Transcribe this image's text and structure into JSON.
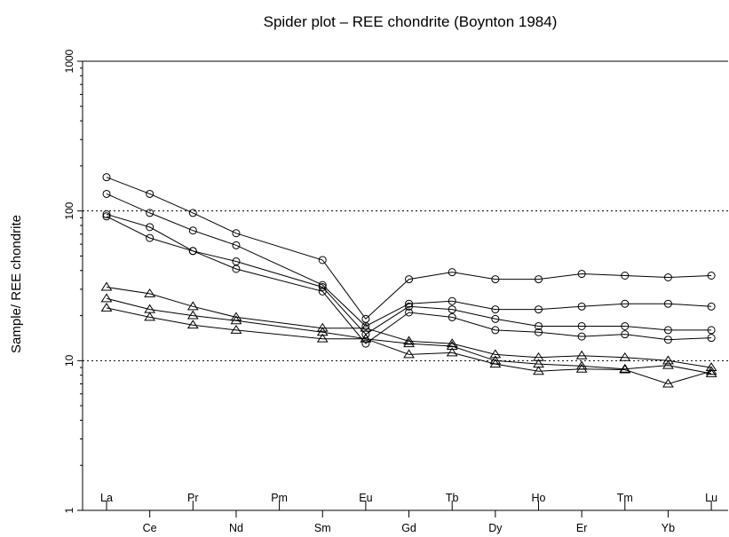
{
  "chart_data": {
    "type": "line",
    "title": "Spider plot –  REE chondrite (Boynton 1984)",
    "ylabel": "Sample/ REE chondrite",
    "xlabel": "",
    "y_scale": "log",
    "ylim": [
      1,
      1000
    ],
    "y_ticks": [
      {
        "value": 1,
        "label": "1"
      },
      {
        "value": 10,
        "label": "10"
      },
      {
        "value": 100,
        "label": "100"
      },
      {
        "value": 1000,
        "label": "1000"
      }
    ],
    "grid_lines": [
      10,
      100
    ],
    "categories": [
      "La",
      "Ce",
      "Pr",
      "Nd",
      "Pm",
      "Sm",
      "Eu",
      "Gd",
      "Tb",
      "Dy",
      "Ho",
      "Er",
      "Tm",
      "Yb",
      "Lu"
    ],
    "series": [
      {
        "marker": "circle",
        "values": [
          168,
          130,
          97,
          71,
          null,
          47,
          19,
          35,
          39,
          35,
          35,
          38,
          37,
          36,
          37
        ]
      },
      {
        "marker": "circle",
        "values": [
          130,
          97,
          74,
          59,
          null,
          32,
          17,
          24,
          25,
          22,
          22,
          23,
          24,
          24,
          23
        ]
      },
      {
        "marker": "circle",
        "values": [
          95,
          78,
          54,
          46,
          null,
          31,
          15,
          23,
          22,
          19,
          17,
          17,
          17,
          16,
          16
        ]
      },
      {
        "marker": "circle",
        "values": [
          92,
          66,
          54,
          41,
          null,
          29,
          13,
          21,
          19.5,
          16,
          15.5,
          14.5,
          15,
          13.8,
          14.2
        ]
      },
      {
        "marker": "triangle",
        "values": [
          31,
          28,
          23,
          19.5,
          null,
          16.5,
          16.5,
          13.5,
          13,
          11,
          10.5,
          10.8,
          10.5,
          10,
          9
        ]
      },
      {
        "marker": "triangle",
        "values": [
          26,
          22,
          20,
          18.5,
          null,
          15.5,
          14,
          13,
          12.5,
          10,
          9.5,
          9.2,
          8.8,
          9.3,
          8.2
        ]
      },
      {
        "marker": "triangle",
        "values": [
          22.5,
          19.5,
          17.3,
          16,
          null,
          14,
          14,
          11,
          11.3,
          9.5,
          8.5,
          8.8,
          8.7,
          7,
          8.5
        ]
      }
    ]
  }
}
